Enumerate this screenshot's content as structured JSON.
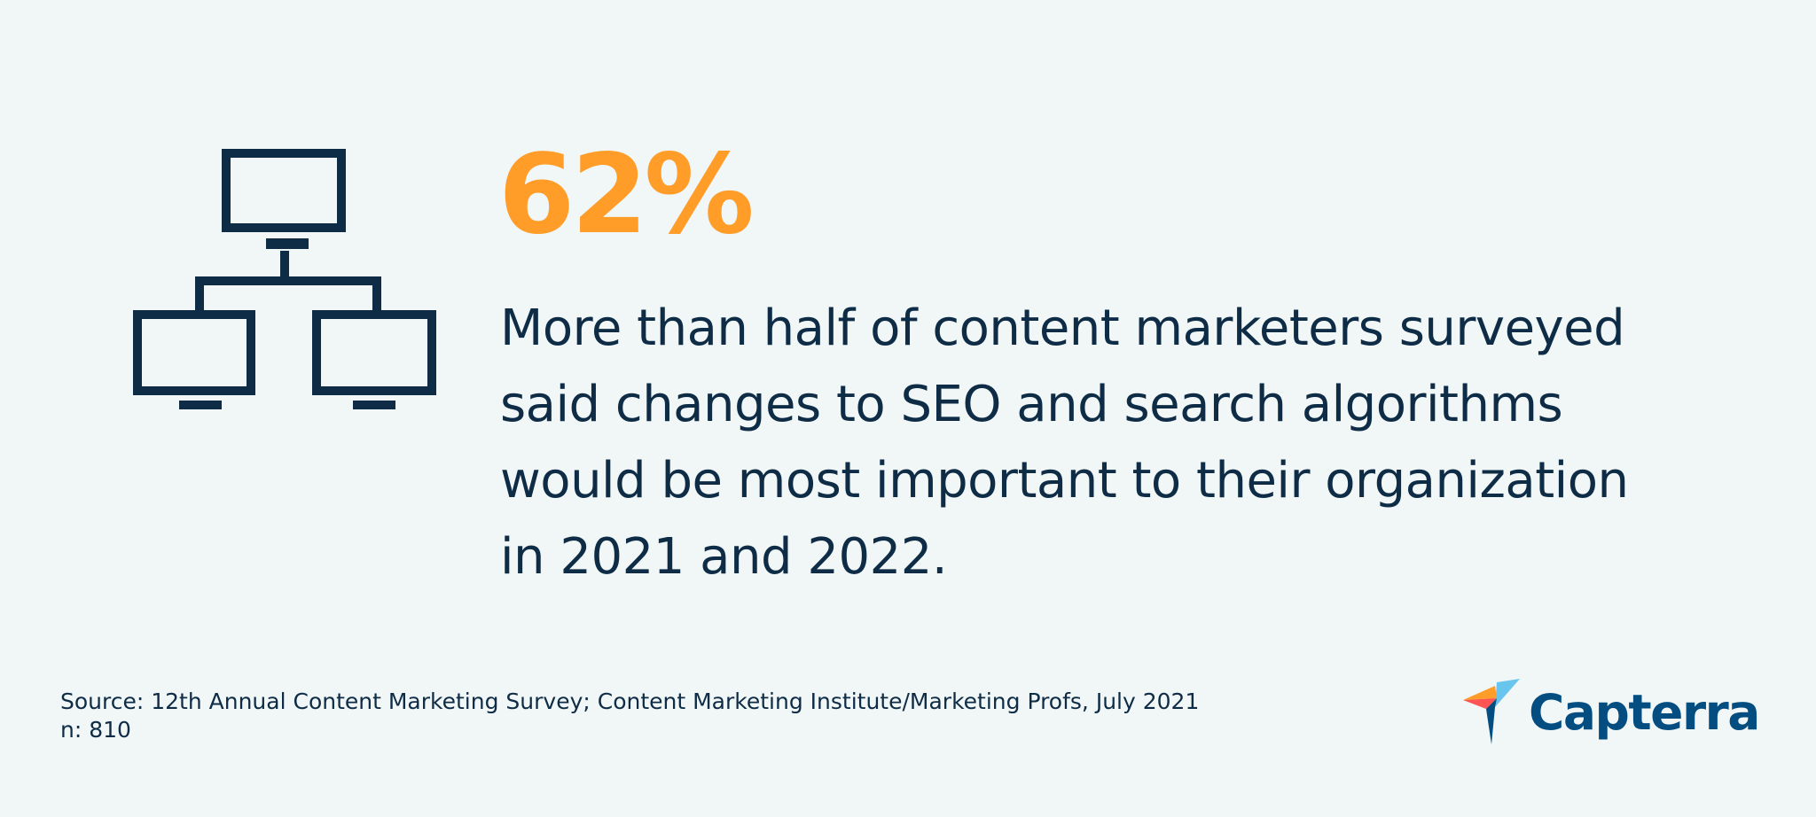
{
  "colors": {
    "background": "#f1f6f7",
    "navy": "#0e2c45",
    "orange": "#ff9d28",
    "logo_blue": "#044d80"
  },
  "icon": "computer-network-icon",
  "stat": {
    "value": "62%"
  },
  "description": {
    "lines": [
      "More than half of content marketers surveyed",
      "said changes to SEO and search algorithms",
      "would be most important to their organization",
      "in 2021 and 2022."
    ]
  },
  "footer": {
    "source": "Source: 12th Annual Content Marketing Survey; Content Marketing Institute/Marketing Profs, July 2021",
    "sample": "n: 810"
  },
  "logo": {
    "text": "Capterra",
    "icon": "capterra-arrow-icon"
  }
}
